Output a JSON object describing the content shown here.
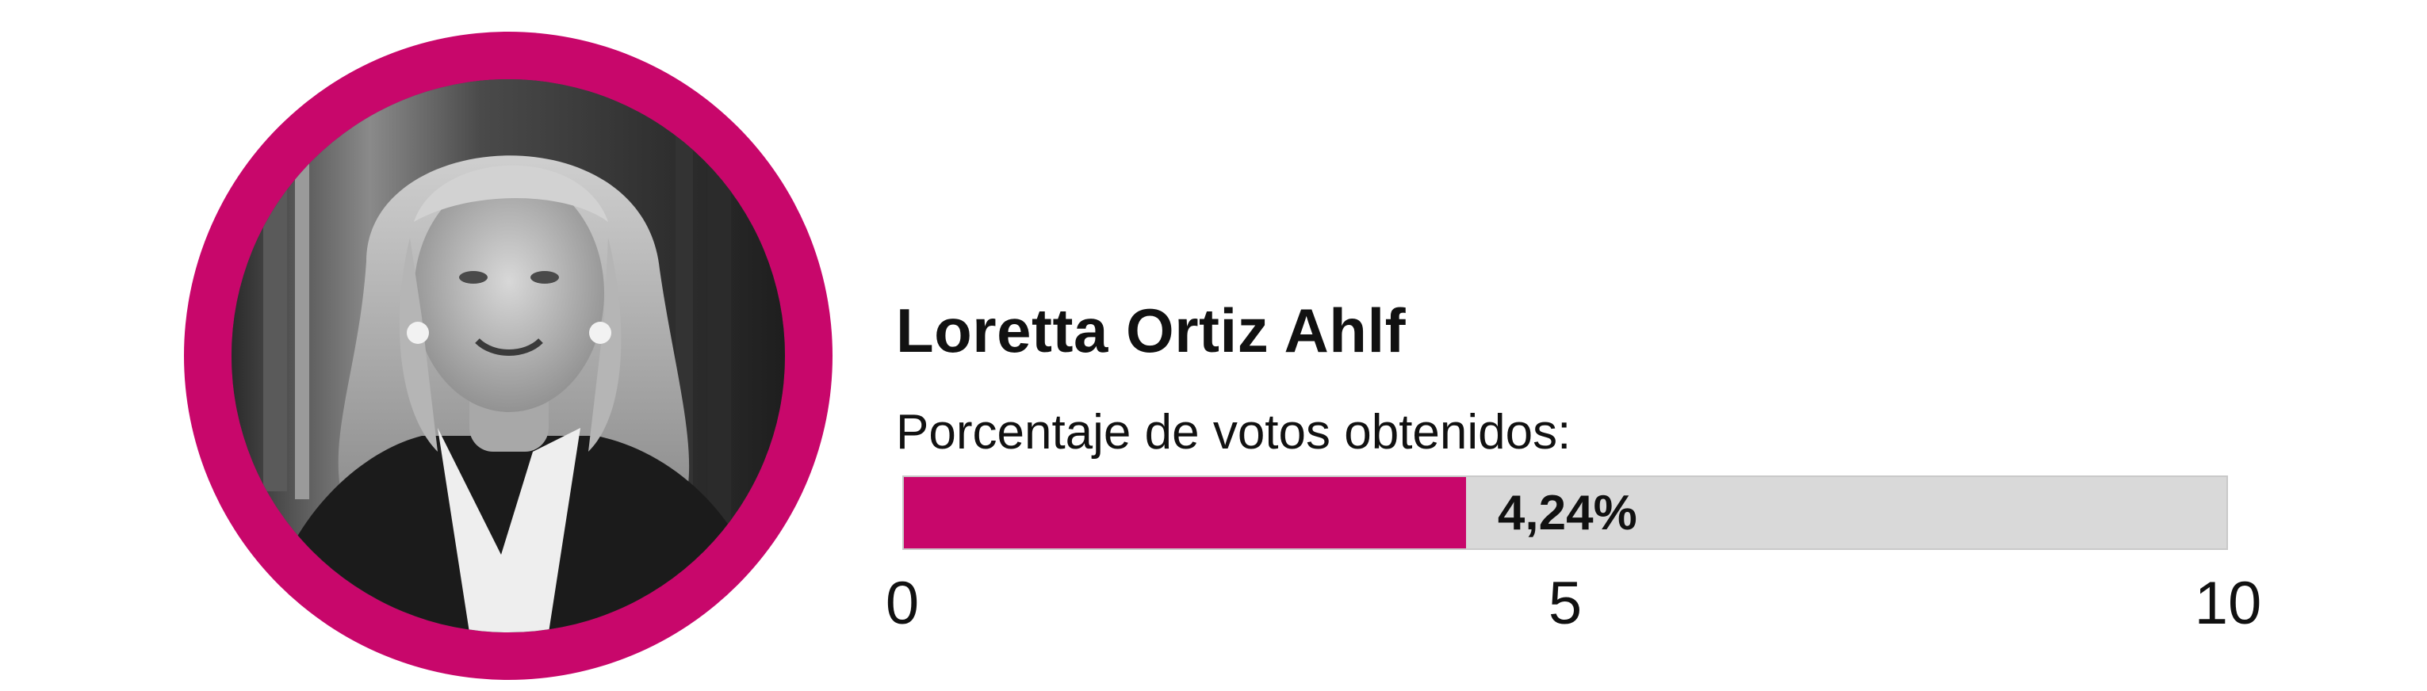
{
  "candidate": {
    "name": "Loretta Ortiz Ahlf",
    "photo": "grayscale-portrait-photo",
    "ring_color": "#c8076b"
  },
  "chart_data": {
    "type": "bar",
    "orientation": "horizontal",
    "ylabel": "Porcentaje de votos obtenidos:",
    "categories": [
      "Loretta Ortiz Ahlf"
    ],
    "values": [
      4.24
    ],
    "value_label": "4,24%",
    "xlim": [
      0,
      10
    ],
    "ticks": [
      {
        "value": 0,
        "label": "0"
      },
      {
        "value": 5,
        "label": "5"
      },
      {
        "value": 10,
        "label": "10"
      }
    ],
    "bar_color": "#c8076b",
    "track_color": "#d9d9d9",
    "grid": false
  }
}
